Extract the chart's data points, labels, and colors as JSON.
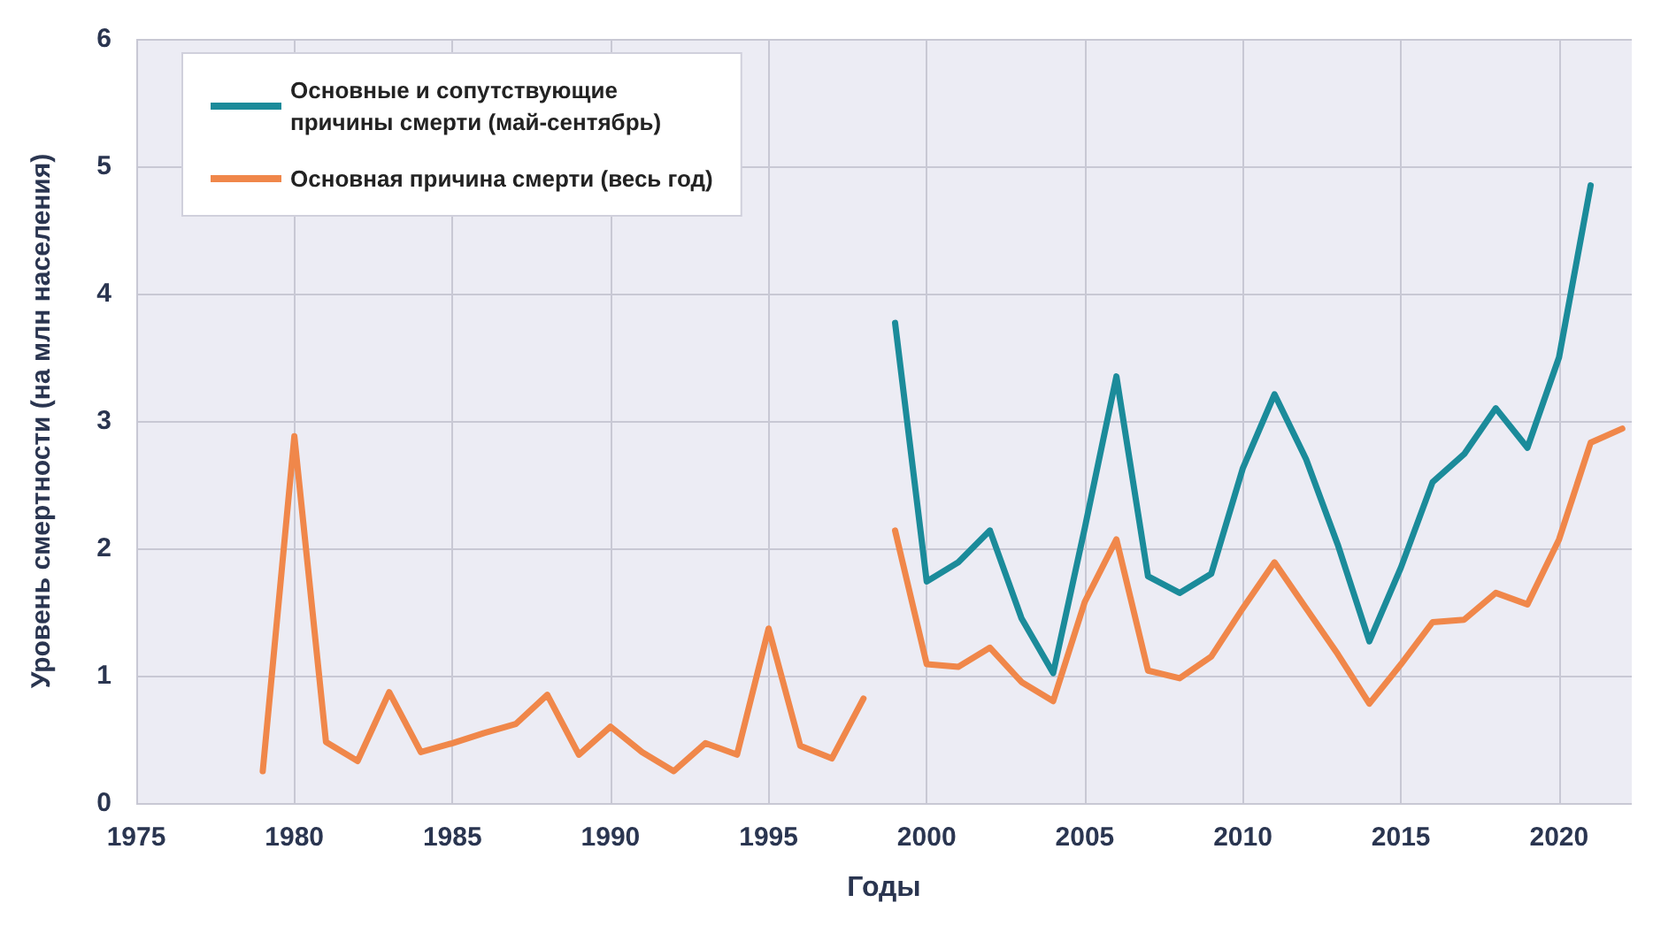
{
  "chart_data": {
    "type": "line",
    "xlabel": "Годы",
    "ylabel": "Уровень смертности (на млн населения)",
    "xlim": [
      1975,
      2022.3
    ],
    "xticks": [
      1975,
      1980,
      1985,
      1990,
      1995,
      2000,
      2005,
      2010,
      2015,
      2020
    ],
    "ylim": [
      0,
      6
    ],
    "yticks": [
      0,
      1,
      2,
      3,
      4,
      5,
      6
    ],
    "grid": true,
    "legend": "top left",
    "marker": "none",
    "line_style": "solid",
    "series": [
      {
        "name": "Основные и сопутствующие\nпричины смерти (май-сентябрь)",
        "color": "#1b8b9a",
        "x": [
          1999,
          2000,
          2001,
          2002,
          2003,
          2004,
          2005,
          2006,
          2007,
          2008,
          2009,
          2010,
          2011,
          2012,
          2013,
          2014,
          2015,
          2016,
          2017,
          2018,
          2019,
          2020,
          2021
        ],
        "values": [
          3.77,
          1.74,
          1.89,
          2.14,
          1.45,
          1.02,
          2.16,
          3.35,
          1.78,
          1.65,
          1.8,
          2.63,
          3.21,
          2.7,
          2.03,
          1.27,
          1.85,
          2.52,
          2.74,
          3.1,
          2.79,
          3.5,
          4.85
        ]
      },
      {
        "name": "Основная причина смерти (весь год)",
        "color": "#f0874a",
        "x": [
          1979,
          1980,
          1981,
          1982,
          1983,
          1984,
          1985,
          1986,
          1987,
          1988,
          1989,
          1990,
          1991,
          1992,
          1993,
          1994,
          1995,
          1996,
          1997,
          1998,
          1998.5,
          1999,
          2000,
          2001,
          2002,
          2003,
          2004,
          2005,
          2006,
          2007,
          2008,
          2009,
          2010,
          2011,
          2012,
          2013,
          2014,
          2015,
          2016,
          2017,
          2018,
          2019,
          2020,
          2021,
          2022
        ],
        "values": [
          0.25,
          2.88,
          0.48,
          0.33,
          0.87,
          0.4,
          0.47,
          0.55,
          0.62,
          0.85,
          0.38,
          0.6,
          0.4,
          0.25,
          0.47,
          0.38,
          1.37,
          0.45,
          0.35,
          0.82,
          null,
          2.14,
          1.09,
          1.07,
          1.22,
          0.95,
          0.8,
          1.58,
          2.07,
          1.04,
          0.98,
          1.15,
          1.53,
          1.89,
          1.53,
          1.17,
          0.78,
          1.09,
          1.42,
          1.44,
          1.65,
          1.56,
          2.07,
          2.83,
          2.94
        ]
      }
    ]
  }
}
